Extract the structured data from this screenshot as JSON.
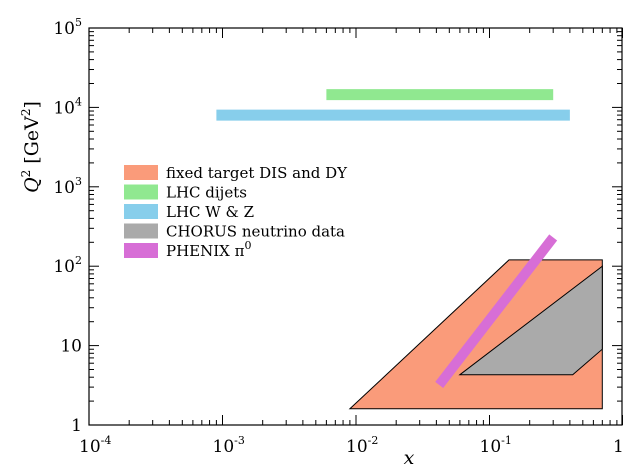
{
  "chart_data": {
    "type": "area",
    "xscale": "log",
    "yscale": "log",
    "xlim": [
      0.0001,
      1
    ],
    "ylim": [
      1,
      100000
    ],
    "xlabel": "x",
    "ylabel": {
      "symbol": "Q",
      "sup": "2",
      "unit_open": "[GeV",
      "unit_sup": "2",
      "unit_close": "]"
    },
    "grid": false,
    "legend_placement": "left-middle",
    "x_ticks": [
      {
        "value": 0.0001,
        "base": "10",
        "exp": "-4"
      },
      {
        "value": 0.001,
        "base": "10",
        "exp": "-3"
      },
      {
        "value": 0.01,
        "base": "10",
        "exp": "-2"
      },
      {
        "value": 0.1,
        "base": "10",
        "exp": "-1"
      },
      {
        "value": 1,
        "base": "1",
        "exp": ""
      }
    ],
    "y_ticks": [
      {
        "value": 1,
        "base": "1",
        "exp": ""
      },
      {
        "value": 10,
        "base": "10",
        "exp": ""
      },
      {
        "value": 100,
        "base": "10",
        "exp": "2"
      },
      {
        "value": 1000,
        "base": "10",
        "exp": "3"
      },
      {
        "value": 10000,
        "base": "10",
        "exp": "4"
      },
      {
        "value": 100000,
        "base": "10",
        "exp": "5"
      }
    ],
    "series": [
      {
        "name": "fixed target DIS and DY",
        "label_main": "fixed target DIS and DY",
        "label_sup": "",
        "color": "#fa9b7a",
        "kind": "polygon",
        "points": [
          [
            0.009,
            1.6
          ],
          [
            0.14,
            120
          ],
          [
            0.7,
            120
          ],
          [
            0.7,
            1.6
          ]
        ]
      },
      {
        "name": "LHC dijets",
        "label_main": "LHC dijets",
        "label_sup": "",
        "color": "#90e890",
        "kind": "band",
        "points": [
          [
            0.006,
            14500
          ],
          [
            0.3,
            14500
          ]
        ]
      },
      {
        "name": "LHC W & Z",
        "label_main": "LHC W & Z",
        "label_sup": "",
        "color": "#87ceeb",
        "kind": "band",
        "points": [
          [
            0.0009,
            8000
          ],
          [
            0.4,
            8000
          ]
        ]
      },
      {
        "name": "CHORUS neutrino data",
        "label_main": "CHORUS neutrino data",
        "label_sup": "",
        "color": "#aaaaaa",
        "kind": "polygon",
        "points": [
          [
            0.06,
            4.3
          ],
          [
            0.7,
            100
          ],
          [
            0.7,
            9
          ],
          [
            0.42,
            4.3
          ]
        ]
      },
      {
        "name": "PHENIX π0",
        "label_main": "PHENIX π",
        "label_sup": "0",
        "color": "#d76ed6",
        "kind": "line",
        "points": [
          [
            0.042,
            3.2
          ],
          [
            0.3,
            230
          ]
        ]
      }
    ]
  }
}
